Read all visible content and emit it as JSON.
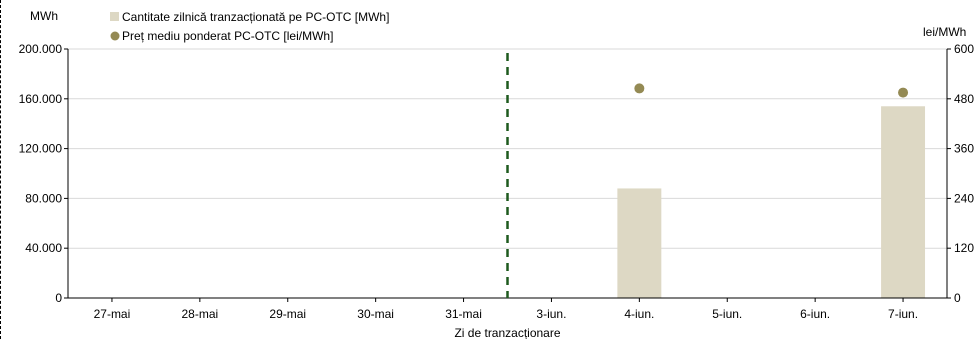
{
  "chart_data": {
    "type": "bar",
    "categories": [
      "27-mai",
      "28-mai",
      "29-mai",
      "30-mai",
      "31-mai",
      "3-iun.",
      "4-iun.",
      "5-iun.",
      "6-iun.",
      "7-iun."
    ],
    "series": [
      {
        "name": "Cantitate zilnică tranzacționată pe PC-OTC [MWh]",
        "type": "bar",
        "axis": "left",
        "color": "#ddd8c4",
        "values": [
          0,
          0,
          0,
          0,
          0,
          0,
          88000,
          0,
          0,
          154000
        ]
      },
      {
        "name": "Preț mediu ponderat PC-OTC [lei/MWh]",
        "type": "scatter",
        "axis": "right",
        "color": "#948a54",
        "values": [
          null,
          null,
          null,
          null,
          null,
          null,
          505,
          null,
          null,
          495
        ]
      }
    ],
    "xlabel": "Zi de tranzacționare",
    "ylabel_left": "MWh",
    "ylabel_right": "lei/MWh",
    "ylim_left": [
      0,
      200000
    ],
    "ylim_right": [
      0,
      600
    ],
    "yticks_left": [
      "0",
      "40.000",
      "80.000",
      "120.000",
      "160.000",
      "200.000"
    ],
    "yticks_right": [
      "0",
      "120",
      "240",
      "360",
      "480",
      "600"
    ],
    "grid": true,
    "legend_position": "top-left",
    "divider_after_category": "31-mai",
    "divider_color": "#1e5a1e",
    "grid_color": "#d9d9d9",
    "axis_color": "#000000"
  }
}
